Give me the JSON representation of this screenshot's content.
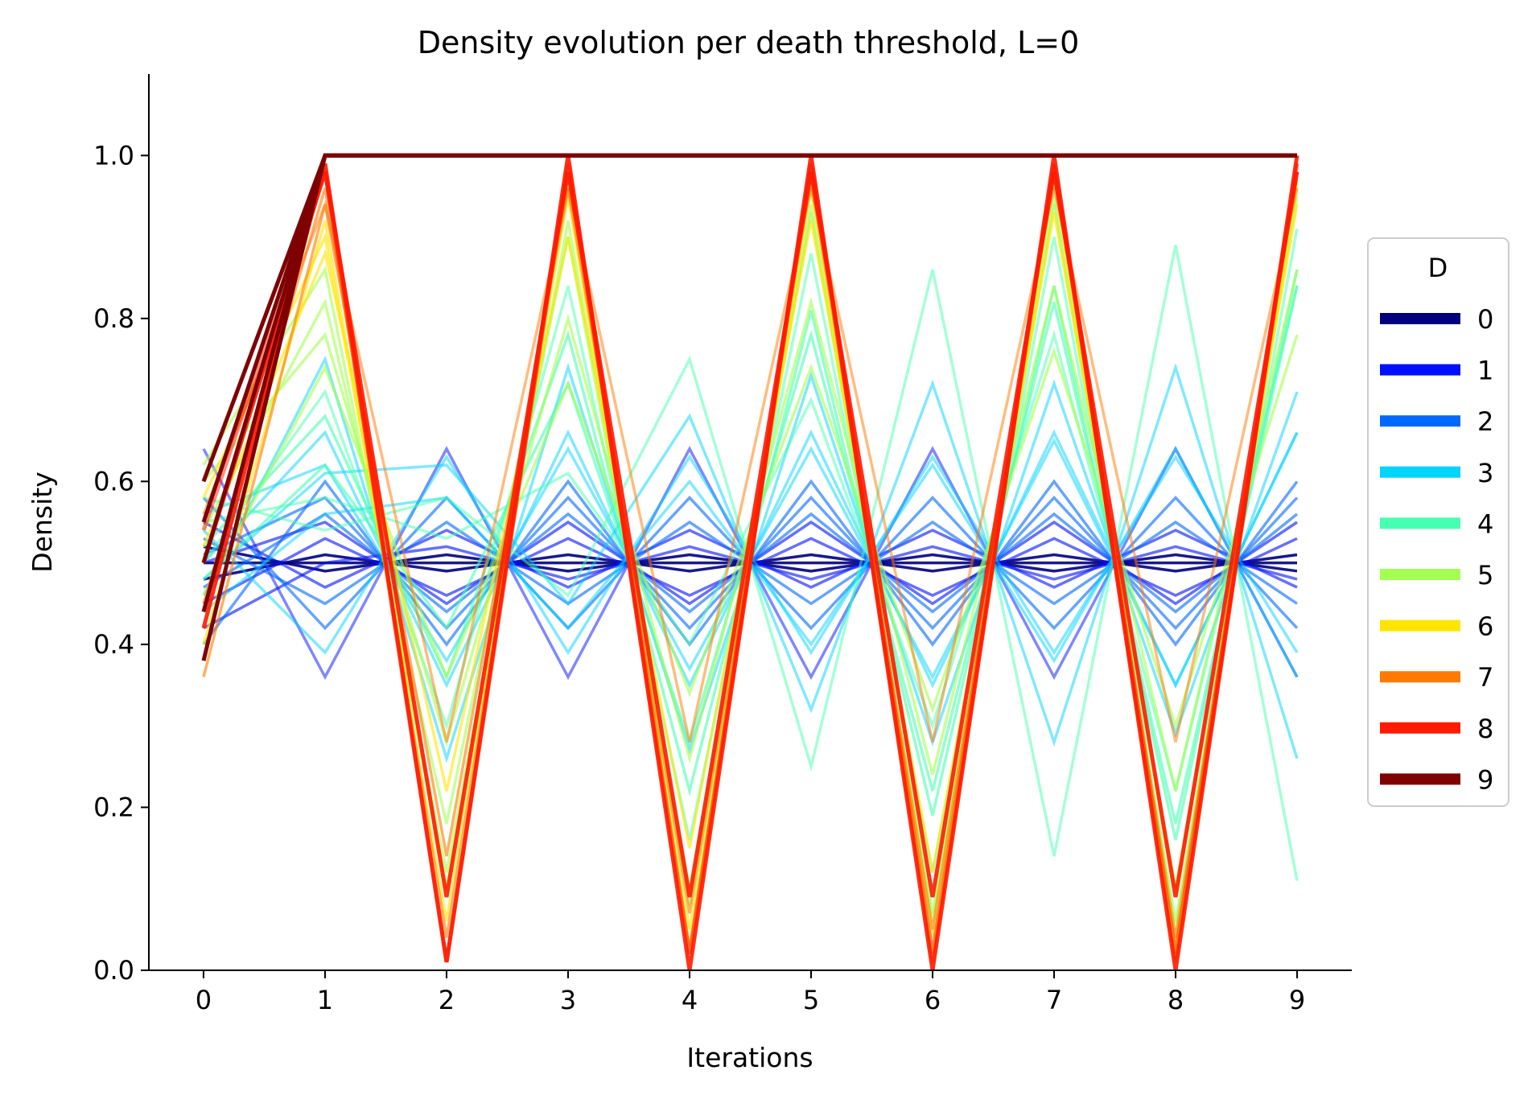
{
  "chart_data": {
    "type": "line",
    "title": "Density evolution per death threshold, L=0",
    "xlabel": "Iterations",
    "ylabel": "Density",
    "xlim": [
      -0.45,
      9.45
    ],
    "ylim": [
      0.0,
      1.1
    ],
    "x": [
      0,
      1,
      2,
      3,
      4,
      5,
      6,
      7,
      8,
      9
    ],
    "x_ticks": [
      "0",
      "1",
      "2",
      "3",
      "4",
      "5",
      "6",
      "7",
      "8",
      "9"
    ],
    "y_ticks": [
      "0.0",
      "0.2",
      "0.4",
      "0.6",
      "0.8",
      "1.0"
    ],
    "grid": false,
    "legend": {
      "title": "D",
      "placement": "right-outside",
      "entries": [
        "0",
        "1",
        "2",
        "3",
        "4",
        "5",
        "6",
        "7",
        "8",
        "9"
      ],
      "colors": [
        "#00007f",
        "#0010ff",
        "#0068ff",
        "#00d4ff",
        "#47ffb0",
        "#a4ff53",
        "#ffe500",
        "#ff7a00",
        "#ff1a00",
        "#7f0000"
      ]
    },
    "series": [
      {
        "D": 0,
        "color": "#00007f",
        "alpha": 0.9,
        "values": [
          0.5,
          0.5,
          0.5,
          0.5,
          0.5,
          0.5,
          0.5,
          0.5,
          0.5,
          0.5
        ]
      },
      {
        "D": 0,
        "color": "#00007f",
        "alpha": 0.9,
        "values": [
          0.48,
          0.51,
          0.49,
          0.51,
          0.49,
          0.51,
          0.49,
          0.51,
          0.49,
          0.51
        ]
      },
      {
        "D": 0,
        "color": "#00007f",
        "alpha": 0.9,
        "values": [
          0.52,
          0.49,
          0.51,
          0.49,
          0.51,
          0.49,
          0.51,
          0.49,
          0.51,
          0.49
        ]
      },
      {
        "D": 1,
        "color": "#0010ff",
        "alpha": 0.6,
        "values": [
          0.55,
          0.47,
          0.54,
          0.47,
          0.54,
          0.47,
          0.54,
          0.47,
          0.54,
          0.47
        ]
      },
      {
        "D": 1,
        "color": "#0010ff",
        "alpha": 0.6,
        "values": [
          0.45,
          0.53,
          0.46,
          0.53,
          0.46,
          0.53,
          0.46,
          0.53,
          0.46,
          0.53
        ]
      },
      {
        "D": 1,
        "color": "#0010ff",
        "alpha": 0.6,
        "values": [
          0.5,
          0.55,
          0.45,
          0.55,
          0.45,
          0.55,
          0.45,
          0.55,
          0.45,
          0.55
        ]
      },
      {
        "D": 1,
        "color": "#0010ff",
        "alpha": 0.5,
        "values": [
          0.64,
          0.36,
          0.64,
          0.36,
          0.64,
          0.36,
          0.64,
          0.36,
          0.64,
          0.36
        ]
      },
      {
        "D": 1,
        "color": "#0010ff",
        "alpha": 0.6,
        "values": [
          0.42,
          0.5,
          0.52,
          0.48,
          0.52,
          0.48,
          0.52,
          0.48,
          0.52,
          0.48
        ]
      },
      {
        "D": 2,
        "color": "#0068ff",
        "alpha": 0.6,
        "values": [
          0.4,
          0.6,
          0.4,
          0.6,
          0.4,
          0.6,
          0.4,
          0.6,
          0.4,
          0.6
        ]
      },
      {
        "D": 2,
        "color": "#0068ff",
        "alpha": 0.6,
        "values": [
          0.58,
          0.42,
          0.58,
          0.42,
          0.58,
          0.42,
          0.58,
          0.42,
          0.58,
          0.42
        ]
      },
      {
        "D": 2,
        "color": "#0068ff",
        "alpha": 0.6,
        "values": [
          0.47,
          0.56,
          0.44,
          0.56,
          0.44,
          0.56,
          0.44,
          0.56,
          0.44,
          0.56
        ]
      },
      {
        "D": 2,
        "color": "#0068ff",
        "alpha": 0.6,
        "values": [
          0.53,
          0.45,
          0.55,
          0.45,
          0.55,
          0.45,
          0.55,
          0.45,
          0.55,
          0.45
        ]
      },
      {
        "D": 2,
        "color": "#0068ff",
        "alpha": 0.6,
        "values": [
          0.51,
          0.58,
          0.42,
          0.58,
          0.42,
          0.58,
          0.42,
          0.58,
          0.42,
          0.58
        ]
      },
      {
        "D": 3,
        "color": "#00d4ff",
        "alpha": 0.5,
        "values": [
          0.46,
          0.75,
          0.26,
          0.74,
          0.27,
          0.73,
          0.28,
          0.72,
          0.29,
          0.71
        ]
      },
      {
        "D": 3,
        "color": "#00d4ff",
        "alpha": 0.5,
        "values": [
          0.54,
          0.39,
          0.63,
          0.39,
          0.63,
          0.39,
          0.63,
          0.39,
          0.63,
          0.39
        ]
      },
      {
        "D": 3,
        "color": "#00d4ff",
        "alpha": 0.5,
        "values": [
          0.5,
          0.66,
          0.35,
          0.66,
          0.35,
          0.66,
          0.35,
          0.66,
          0.35,
          0.66
        ]
      },
      {
        "D": 3,
        "color": "#00d4ff",
        "alpha": 0.5,
        "values": [
          0.56,
          0.62,
          0.38,
          0.64,
          0.37,
          0.64,
          0.36,
          0.65,
          0.35,
          0.66
        ]
      },
      {
        "D": 3,
        "color": "#00d4ff",
        "alpha": 0.5,
        "values": [
          0.48,
          0.61,
          0.62,
          0.45,
          0.68,
          0.32,
          0.72,
          0.28,
          0.74,
          0.26
        ]
      },
      {
        "D": 3,
        "color": "#00d4ff",
        "alpha": 0.5,
        "values": [
          0.44,
          0.56,
          0.58,
          0.42,
          0.6,
          0.4,
          0.62,
          0.38,
          0.64,
          0.36
        ]
      },
      {
        "D": 4,
        "color": "#47ffb0",
        "alpha": 0.6,
        "values": [
          0.52,
          0.68,
          0.36,
          0.78,
          0.22,
          0.81,
          0.19,
          0.84,
          0.16,
          0.86
        ]
      },
      {
        "D": 4,
        "color": "#47ffb0",
        "alpha": 0.6,
        "values": [
          0.48,
          0.62,
          0.42,
          0.72,
          0.28,
          0.78,
          0.22,
          0.82,
          0.18,
          0.84
        ]
      },
      {
        "D": 4,
        "color": "#47ffb0",
        "alpha": 0.5,
        "values": [
          0.55,
          0.58,
          0.53,
          0.61,
          0.4,
          0.7,
          0.3,
          0.78,
          0.22,
          0.84
        ]
      },
      {
        "D": 4,
        "color": "#47ffb0",
        "alpha": 0.5,
        "values": [
          0.58,
          0.54,
          0.58,
          0.46,
          0.75,
          0.25,
          0.86,
          0.14,
          0.89,
          0.11
        ]
      },
      {
        "D": 4,
        "color": "#47ffb0",
        "alpha": 0.5,
        "values": [
          0.5,
          0.71,
          0.3,
          0.84,
          0.16,
          0.88,
          0.12,
          0.9,
          0.1,
          0.91
        ]
      },
      {
        "D": 5,
        "color": "#a4ff53",
        "alpha": 0.6,
        "values": [
          0.54,
          0.82,
          0.18,
          0.9,
          0.1,
          0.93,
          0.07,
          0.94,
          0.06,
          0.95
        ]
      },
      {
        "D": 5,
        "color": "#a4ff53",
        "alpha": 0.6,
        "values": [
          0.6,
          0.78,
          0.28,
          0.8,
          0.26,
          0.82,
          0.24,
          0.84,
          0.22,
          0.86
        ]
      },
      {
        "D": 5,
        "color": "#a4ff53",
        "alpha": 0.6,
        "values": [
          0.46,
          0.74,
          0.36,
          0.72,
          0.34,
          0.74,
          0.32,
          0.76,
          0.3,
          0.78
        ]
      },
      {
        "D": 5,
        "color": "#a4ff53",
        "alpha": 0.6,
        "values": [
          0.62,
          0.86,
          0.12,
          0.92,
          0.08,
          0.94,
          0.06,
          0.95,
          0.05,
          0.96
        ]
      },
      {
        "D": 6,
        "color": "#ffe500",
        "alpha": 0.6,
        "values": [
          0.58,
          0.9,
          0.1,
          0.95,
          0.05,
          0.96,
          0.04,
          0.97,
          0.03,
          0.97
        ]
      },
      {
        "D": 6,
        "color": "#ffe500",
        "alpha": 0.6,
        "values": [
          0.52,
          0.88,
          0.22,
          0.9,
          0.15,
          0.92,
          0.12,
          0.93,
          0.1,
          0.94
        ]
      },
      {
        "D": 6,
        "color": "#ffe500",
        "alpha": 0.6,
        "values": [
          0.4,
          0.92,
          0.06,
          0.97,
          0.03,
          0.98,
          0.02,
          0.98,
          0.02,
          0.98
        ]
      },
      {
        "D": 7,
        "color": "#ff7a00",
        "alpha": 0.6,
        "values": [
          0.36,
          0.94,
          0.14,
          0.96,
          0.07,
          0.97,
          0.05,
          0.98,
          0.04,
          0.98
        ]
      },
      {
        "D": 7,
        "color": "#ff7a00",
        "alpha": 0.6,
        "values": [
          0.45,
          0.96,
          0.04,
          0.98,
          0.02,
          0.99,
          0.01,
          0.99,
          0.01,
          0.99
        ]
      },
      {
        "D": 7,
        "color": "#ff7a00",
        "alpha": 0.5,
        "values": [
          0.56,
          0.94,
          0.28,
          0.96,
          0.28,
          0.96,
          0.28,
          0.96,
          0.28,
          0.96
        ]
      },
      {
        "D": 8,
        "color": "#ff1a00",
        "alpha": 0.9,
        "values": [
          0.42,
          0.99,
          0.01,
          1.0,
          0.0,
          1.0,
          0.0,
          1.0,
          0.0,
          1.0
        ]
      },
      {
        "D": 8,
        "color": "#ff1a00",
        "alpha": 0.9,
        "values": [
          0.5,
          0.98,
          0.09,
          0.98,
          0.09,
          0.98,
          0.09,
          0.98,
          0.09,
          0.98
        ]
      },
      {
        "D": 8,
        "color": "#ff1a00",
        "alpha": 0.5,
        "values": [
          0.54,
          0.98,
          0.01,
          0.99,
          0.02,
          0.99,
          0.02,
          0.99,
          0.02,
          0.99
        ]
      },
      {
        "D": 9,
        "color": "#7f0000",
        "alpha": 1.0,
        "values": [
          0.38,
          1.0,
          1.0,
          1.0,
          1.0,
          1.0,
          1.0,
          1.0,
          1.0,
          1.0
        ]
      },
      {
        "D": 9,
        "color": "#7f0000",
        "alpha": 1.0,
        "values": [
          0.44,
          1.0,
          1.0,
          1.0,
          1.0,
          1.0,
          1.0,
          1.0,
          1.0,
          1.0
        ]
      },
      {
        "D": 9,
        "color": "#7f0000",
        "alpha": 1.0,
        "values": [
          0.5,
          1.0,
          1.0,
          1.0,
          1.0,
          1.0,
          1.0,
          1.0,
          1.0,
          1.0
        ]
      },
      {
        "D": 9,
        "color": "#7f0000",
        "alpha": 1.0,
        "values": [
          0.55,
          1.0,
          1.0,
          1.0,
          1.0,
          1.0,
          1.0,
          1.0,
          1.0,
          1.0
        ]
      },
      {
        "D": 9,
        "color": "#7f0000",
        "alpha": 1.0,
        "values": [
          0.6,
          1.0,
          1.0,
          1.0,
          1.0,
          1.0,
          1.0,
          1.0,
          1.0,
          1.0
        ]
      }
    ]
  }
}
